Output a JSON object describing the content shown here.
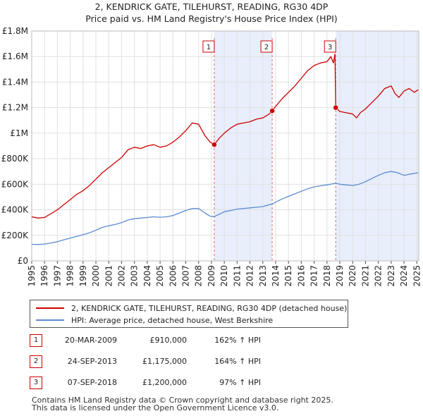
{
  "title_line1": "2, KENDRICK GATE, TILEHURST, READING, RG30 4DP",
  "title_line2": "Price paid vs. HM Land Registry's House Price Index (HPI)",
  "colors": {
    "property": "#cc0000",
    "hpi": "#5b8bd0",
    "shade": "#e8eefb",
    "grid": "#e0e0e0",
    "marker_border": "#cc0000",
    "vline": "#e06666"
  },
  "chart_data": {
    "type": "line",
    "xlim": [
      1995,
      2025.15
    ],
    "ylim": [
      0,
      1800000
    ],
    "y_ticks": [
      0,
      200000,
      400000,
      600000,
      800000,
      1000000,
      1200000,
      1400000,
      1600000,
      1800000
    ],
    "y_tick_labels": [
      "£0",
      "£200K",
      "£400K",
      "£600K",
      "£800K",
      "£1M",
      "£1.2M",
      "£1.4M",
      "£1.6M",
      "£1.8M"
    ],
    "x_ticks": [
      1995,
      1996,
      1997,
      1998,
      1999,
      2000,
      2001,
      2002,
      2003,
      2004,
      2005,
      2006,
      2007,
      2008,
      2009,
      2010,
      2011,
      2012,
      2013,
      2014,
      2015,
      2016,
      2017,
      2018,
      2019,
      2020,
      2021,
      2022,
      2023,
      2024,
      2025
    ],
    "shaded_spans": [
      [
        2009.22,
        2013.73
      ],
      [
        2018.68,
        2025.15
      ]
    ],
    "series": [
      {
        "name": "2, KENDRICK GATE, TILEHURST, READING, RG30 4DP (detached house)",
        "key": "property",
        "x": [
          1995,
          1995.5,
          1996,
          1996.5,
          1997,
          1997.5,
          1998,
          1998.5,
          1999,
          1999.5,
          2000,
          2000.5,
          2001,
          2001.5,
          2002,
          2002.5,
          2003,
          2003.5,
          2004,
          2004.5,
          2005,
          2005.5,
          2006,
          2006.5,
          2007,
          2007.5,
          2008,
          2008.5,
          2008.9,
          2009.22,
          2009.6,
          2010,
          2010.5,
          2011,
          2011.5,
          2012,
          2012.5,
          2013,
          2013.5,
          2013.73,
          2014,
          2014.5,
          2015,
          2015.5,
          2016,
          2016.5,
          2017,
          2017.5,
          2018,
          2018.3,
          2018.5,
          2018.62,
          2018.68,
          2019,
          2019.5,
          2020,
          2020.3,
          2020.6,
          2021,
          2021.5,
          2022,
          2022.5,
          2023,
          2023.3,
          2023.6,
          2024,
          2024.4,
          2024.8,
          2025.1
        ],
        "y": [
          345000,
          335000,
          340000,
          370000,
          400000,
          440000,
          480000,
          520000,
          550000,
          590000,
          640000,
          690000,
          730000,
          770000,
          810000,
          870000,
          890000,
          880000,
          900000,
          910000,
          890000,
          900000,
          930000,
          970000,
          1020000,
          1080000,
          1070000,
          980000,
          930000,
          910000,
          960000,
          1000000,
          1040000,
          1070000,
          1080000,
          1090000,
          1110000,
          1120000,
          1150000,
          1175000,
          1210000,
          1270000,
          1320000,
          1370000,
          1430000,
          1490000,
          1530000,
          1550000,
          1560000,
          1600000,
          1550000,
          1620000,
          1200000,
          1170000,
          1160000,
          1150000,
          1120000,
          1160000,
          1190000,
          1240000,
          1290000,
          1350000,
          1370000,
          1310000,
          1280000,
          1330000,
          1350000,
          1320000,
          1340000
        ]
      },
      {
        "name": "HPI: Average price, detached house, West Berkshire",
        "key": "hpi",
        "x": [
          1995,
          1995.5,
          1996,
          1996.5,
          1997,
          1997.5,
          1998,
          1998.5,
          1999,
          1999.5,
          2000,
          2000.5,
          2001,
          2001.5,
          2002,
          2002.5,
          2003,
          2003.5,
          2004,
          2004.5,
          2005,
          2005.5,
          2006,
          2006.5,
          2007,
          2007.5,
          2008,
          2008.5,
          2008.9,
          2009.22,
          2009.6,
          2010,
          2010.5,
          2011,
          2011.5,
          2012,
          2012.5,
          2013,
          2013.5,
          2013.73,
          2014,
          2014.5,
          2015,
          2015.5,
          2016,
          2016.5,
          2017,
          2017.5,
          2018,
          2018.68,
          2019,
          2019.5,
          2020,
          2020.5,
          2021,
          2021.5,
          2022,
          2022.5,
          2023,
          2023.5,
          2024,
          2024.5,
          2025.1
        ],
        "y": [
          130000,
          128000,
          132000,
          140000,
          150000,
          165000,
          178000,
          192000,
          205000,
          220000,
          240000,
          262000,
          275000,
          285000,
          300000,
          320000,
          330000,
          335000,
          340000,
          345000,
          342000,
          345000,
          355000,
          375000,
          395000,
          410000,
          410000,
          375000,
          350000,
          347000,
          365000,
          385000,
          395000,
          405000,
          410000,
          415000,
          420000,
          425000,
          440000,
          445000,
          460000,
          485000,
          505000,
          525000,
          545000,
          565000,
          580000,
          588000,
          595000,
          608000,
          600000,
          595000,
          590000,
          600000,
          620000,
          645000,
          670000,
          690000,
          700000,
          690000,
          670000,
          680000,
          690000
        ]
      }
    ],
    "sales": [
      {
        "label": "1",
        "x": 2009.22,
        "y": 910000
      },
      {
        "label": "2",
        "x": 2013.73,
        "y": 1175000
      },
      {
        "label": "3",
        "x": 2018.68,
        "y": 1200000
      }
    ]
  },
  "legend": {
    "property": "2, KENDRICK GATE, TILEHURST, READING, RG30 4DP (detached house)",
    "hpi": "HPI: Average price, detached house, West Berkshire"
  },
  "sales_table": [
    {
      "num": "1",
      "date": "20-MAR-2009",
      "price": "£910,000",
      "hpi": "162% ↑ HPI"
    },
    {
      "num": "2",
      "date": "24-SEP-2013",
      "price": "£1,175,000",
      "hpi": "164% ↑ HPI"
    },
    {
      "num": "3",
      "date": "07-SEP-2018",
      "price": "£1,200,000",
      "hpi": "97% ↑ HPI"
    }
  ],
  "footer": {
    "line1": "Contains HM Land Registry data © Crown copyright and database right 2025.",
    "line2": "This data is licensed under the Open Government Licence v3.0."
  }
}
